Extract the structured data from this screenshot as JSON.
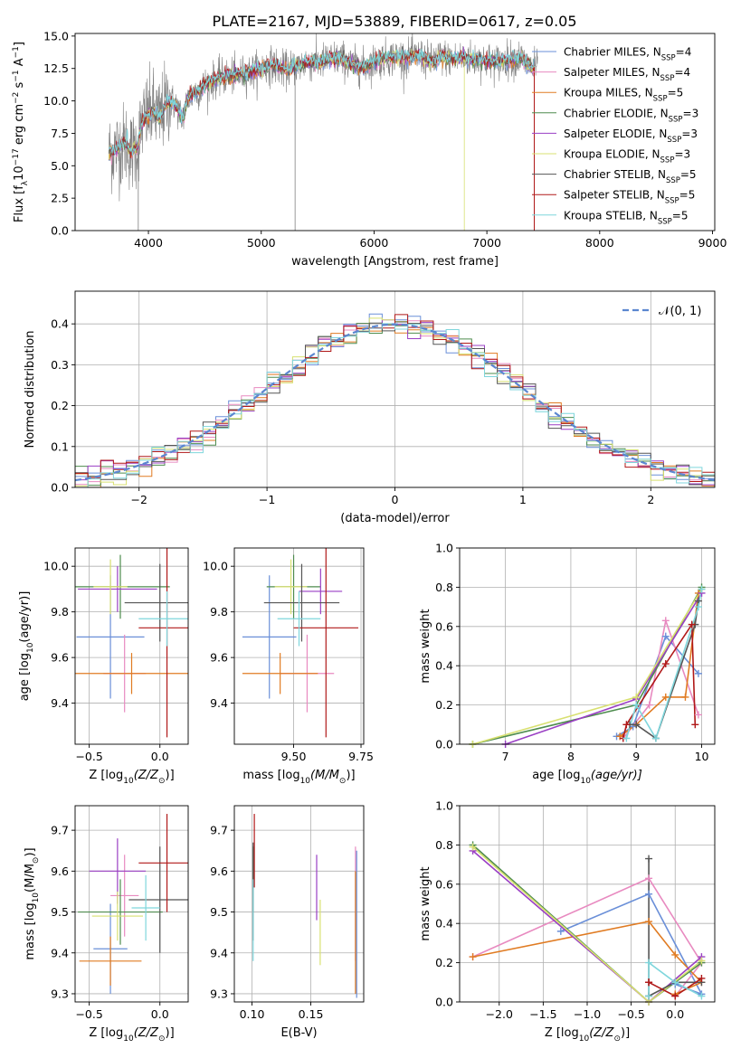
{
  "title": "PLATE=2167, MJD=53889, FIBERID=0617, z=0.05",
  "colors": {
    "chabrier_miles": "#6a8fd8",
    "salpeter_miles": "#e88ac0",
    "kroupa_miles": "#e07b22",
    "chabrier_elodie": "#4e8c4e",
    "salpeter_elodie": "#9a3fc4",
    "kroupa_elodie": "#d8e070",
    "chabrier_stelib": "#555555",
    "salpeter_stelib": "#b01818",
    "kroupa_stelib": "#7fd6dc",
    "data": "#808080",
    "gauss": "#5b86d0"
  },
  "chart_data": [
    {
      "id": "spectrum",
      "type": "line",
      "xlabel": "wavelength [Angstrom, rest frame]",
      "ylabel": "Flux [f",
      "ylabel_sub": "λ",
      "ylabel_tail": "10",
      "ylabel_sup1": "−17",
      "ylabel_tail2": " erg cm",
      "ylabel_sup2": "−2",
      "ylabel_tail3": " s",
      "ylabel_sup3": "−1",
      "ylabel_tail4": " A",
      "ylabel_sup4": "−1",
      "ylabel_end": "]",
      "xlim": [
        3350,
        9020
      ],
      "ylim": [
        0,
        15.2
      ],
      "xticks": [
        4000,
        5000,
        6000,
        7000,
        8000,
        9000
      ],
      "yticks": [
        0.0,
        2.5,
        5.0,
        7.5,
        10.0,
        12.5,
        15.0
      ],
      "ytick_labels": [
        "0.0",
        "2.5",
        "5.0",
        "7.5",
        "10.0",
        "12.5",
        "15.0"
      ],
      "continuum": {
        "x": [
          3650,
          3700,
          3750,
          3800,
          3850,
          3900,
          3950,
          4000,
          4050,
          4100,
          4150,
          4200,
          4250,
          4300,
          4350,
          4400,
          4450,
          4500,
          4600,
          4700,
          4800,
          4900,
          5000,
          5100,
          5200,
          5300,
          5400,
          5500,
          5600,
          5700,
          5800,
          5900,
          6000,
          6100,
          6200,
          6300,
          6400,
          6500,
          6600,
          6700,
          6800,
          6900,
          7000,
          7100,
          7200,
          7300,
          7400,
          7420
        ],
        "y": [
          6.0,
          6.2,
          6.5,
          6.8,
          6.0,
          6.5,
          8.5,
          9.0,
          9.2,
          8.6,
          9.8,
          10.0,
          9.6,
          8.6,
          10.2,
          10.6,
          10.8,
          11.2,
          11.7,
          11.9,
          12.0,
          12.2,
          12.5,
          12.8,
          12.4,
          12.6,
          13.0,
          12.9,
          13.2,
          13.3,
          12.8,
          12.6,
          13.0,
          13.3,
          13.4,
          13.3,
          13.5,
          13.0,
          13.4,
          13.2,
          13.3,
          13.2,
          13.1,
          13.0,
          13.2,
          13.3,
          12.5,
          12.6
        ]
      },
      "models_xmax": 7420,
      "data_xmax": 7450,
      "legend_position": "upper right",
      "legend": [
        {
          "label": "Chabrier MILES, N",
          "sub": "SSP",
          "tail": "=4",
          "color_key": "chabrier_miles"
        },
        {
          "label": "Salpeter MILES, N",
          "sub": "SSP",
          "tail": "=4",
          "color_key": "salpeter_miles"
        },
        {
          "label": "Kroupa MILES, N",
          "sub": "SSP",
          "tail": "=5",
          "color_key": "kroupa_miles"
        },
        {
          "label": "Chabrier ELODIE, N",
          "sub": "SSP",
          "tail": "=3",
          "color_key": "chabrier_elodie"
        },
        {
          "label": "Salpeter ELODIE, N",
          "sub": "SSP",
          "tail": "=3",
          "color_key": "salpeter_elodie"
        },
        {
          "label": "Kroupa ELODIE, N",
          "sub": "SSP",
          "tail": "=3",
          "color_key": "kroupa_elodie"
        },
        {
          "label": "Chabrier STELIB, N",
          "sub": "SSP",
          "tail": "=5",
          "color_key": "chabrier_stelib"
        },
        {
          "label": "Salpeter STELIB, N",
          "sub": "SSP",
          "tail": "=5",
          "color_key": "salpeter_stelib"
        },
        {
          "label": "Kroupa STELIB, N",
          "sub": "SSP",
          "tail": "=5",
          "color_key": "kroupa_stelib"
        }
      ]
    },
    {
      "id": "residuals",
      "type": "line",
      "xlabel": "(data-model)/error",
      "ylabel": "Normed distribution",
      "xlim": [
        -2.5,
        2.5
      ],
      "ylim": [
        0,
        0.48
      ],
      "xticks": [
        -2,
        -1,
        0,
        1,
        2
      ],
      "xtick_labels": [
        "−2",
        "−1",
        "0",
        "1",
        "2"
      ],
      "yticks": [
        0.0,
        0.1,
        0.2,
        0.3,
        0.4
      ],
      "ytick_labels": [
        "0.0",
        "0.1",
        "0.2",
        "0.3",
        "0.4"
      ],
      "grid": true,
      "bin_width": 0.1,
      "gauss_label": "𝒩(0, 1)",
      "legend_position": "upper right"
    },
    {
      "id": "age_vs_Z",
      "type": "errorbar",
      "xlabel": "Z [log",
      "xlabel_sub": "10",
      "xlabel_tail": "(Z/Z",
      "xlabel_sub2": "⊙",
      "xlabel_end": ")]",
      "ylabel": "age  [log",
      "ylabel_sub": "10",
      "ylabel_tail": "(age/yr)]",
      "xlim": [
        -0.6,
        0.2
      ],
      "ylim": [
        9.22,
        10.08
      ],
      "xticks": [
        -0.5,
        0.0
      ],
      "xtick_labels": [
        "−0.5",
        "0.0"
      ],
      "yticks": [
        9.4,
        9.6,
        9.8,
        10.0
      ],
      "ytick_labels": [
        "9.4",
        "9.6",
        "9.8",
        "10.0"
      ],
      "grid": true,
      "points": [
        {
          "x": -0.35,
          "y": 9.69,
          "xerr": 0.24,
          "yerr": 0.27,
          "color_key": "chabrier_miles"
        },
        {
          "x": -0.25,
          "y": 9.53,
          "xerr": 0.15,
          "yerr": 0.17,
          "color_key": "salpeter_miles"
        },
        {
          "x": -0.2,
          "y": 9.53,
          "xerr": 0.42,
          "yerr": 0.09,
          "color_key": "kroupa_miles"
        },
        {
          "x": -0.28,
          "y": 9.91,
          "xerr": 0.35,
          "yerr": 0.14,
          "color_key": "chabrier_elodie"
        },
        {
          "x": -0.3,
          "y": 9.9,
          "xerr": 0.28,
          "yerr": 0.1,
          "color_key": "salpeter_elodie"
        },
        {
          "x": -0.35,
          "y": 9.91,
          "xerr": 0.12,
          "yerr": 0.12,
          "color_key": "kroupa_elodie"
        },
        {
          "x": 0.0,
          "y": 9.84,
          "xerr": 0.25,
          "yerr": 0.17,
          "color_key": "chabrier_stelib"
        },
        {
          "x": 0.05,
          "y": 9.73,
          "xerr": 0.2,
          "yerr": 0.48,
          "color_key": "salpeter_stelib"
        },
        {
          "x": 0.05,
          "y": 9.77,
          "xerr": 0.2,
          "yerr": 0.12,
          "color_key": "kroupa_stelib"
        }
      ]
    },
    {
      "id": "age_vs_mass",
      "type": "errorbar",
      "xlabel": "mass [log",
      "xlabel_sub": "10",
      "xlabel_tail": "(M/M",
      "xlabel_sub2": "⊙",
      "xlabel_end": ")]",
      "xlim": [
        9.28,
        9.76
      ],
      "ylim": [
        9.22,
        10.08
      ],
      "xticks": [
        9.5,
        9.75
      ],
      "xtick_labels": [
        "9.50",
        "9.75"
      ],
      "yticks": [
        9.4,
        9.6,
        9.8,
        10.0
      ],
      "ytick_labels": [
        "9.4",
        "9.6",
        "9.8",
        "10.0"
      ],
      "grid": true,
      "points": [
        {
          "x": 9.41,
          "y": 9.69,
          "xerr": 0.1,
          "yerr": 0.27,
          "color_key": "chabrier_miles"
        },
        {
          "x": 9.55,
          "y": 9.53,
          "xerr": 0.1,
          "yerr": 0.17,
          "color_key": "salpeter_miles"
        },
        {
          "x": 9.45,
          "y": 9.53,
          "xerr": 0.14,
          "yerr": 0.09,
          "color_key": "kroupa_miles"
        },
        {
          "x": 9.5,
          "y": 9.91,
          "xerr": 0.1,
          "yerr": 0.14,
          "color_key": "chabrier_elodie"
        },
        {
          "x": 9.6,
          "y": 9.89,
          "xerr": 0.08,
          "yerr": 0.1,
          "color_key": "salpeter_elodie"
        },
        {
          "x": 9.49,
          "y": 9.91,
          "xerr": 0.06,
          "yerr": 0.12,
          "color_key": "kroupa_elodie"
        },
        {
          "x": 9.53,
          "y": 9.84,
          "xerr": 0.14,
          "yerr": 0.17,
          "color_key": "chabrier_stelib"
        },
        {
          "x": 9.62,
          "y": 9.73,
          "xerr": 0.12,
          "yerr": 0.48,
          "color_key": "salpeter_stelib"
        },
        {
          "x": 9.52,
          "y": 9.77,
          "xerr": 0.08,
          "yerr": 0.12,
          "color_key": "kroupa_stelib"
        }
      ]
    },
    {
      "id": "mass_weight_vs_age",
      "type": "line",
      "xlabel": "age  [log",
      "xlabel_sub": "10",
      "xlabel_tail": "(age/yr)]",
      "ylabel": "mass weight",
      "xlim": [
        6.3,
        10.2
      ],
      "ylim": [
        0,
        1.0
      ],
      "xticks": [
        7,
        8,
        9,
        10
      ],
      "xtick_labels": [
        "7",
        "8",
        "9",
        "10"
      ],
      "yticks": [
        0.0,
        0.2,
        0.4,
        0.6,
        0.8,
        1.0
      ],
      "ytick_labels": [
        "0.0",
        "0.2",
        "0.4",
        "0.6",
        "0.8",
        "1.0"
      ],
      "grid": true,
      "series": [
        {
          "color_key": "chabrier_miles",
          "x": [
            8.7,
            8.95,
            9.45,
            9.95
          ],
          "y": [
            0.04,
            0.09,
            0.55,
            0.36
          ]
        },
        {
          "color_key": "salpeter_miles",
          "x": [
            8.8,
            9.2,
            9.45,
            9.95
          ],
          "y": [
            0.03,
            0.2,
            0.63,
            0.15
          ]
        },
        {
          "color_key": "kroupa_miles",
          "x": [
            8.75,
            9.0,
            9.45,
            9.75,
            9.95
          ],
          "y": [
            0.04,
            0.1,
            0.24,
            0.24,
            0.77
          ]
        },
        {
          "color_key": "chabrier_elodie",
          "x": [
            6.5,
            9.0,
            10.0
          ],
          "y": [
            0.0,
            0.2,
            0.8
          ]
        },
        {
          "color_key": "salpeter_elodie",
          "x": [
            7.0,
            9.0,
            10.0
          ],
          "y": [
            0.0,
            0.23,
            0.77
          ]
        },
        {
          "color_key": "kroupa_elodie",
          "x": [
            6.5,
            9.0,
            10.0
          ],
          "y": [
            0.0,
            0.24,
            0.79
          ]
        },
        {
          "color_key": "chabrier_stelib",
          "x": [
            8.9,
            9.0,
            9.3,
            9.9,
            9.95
          ],
          "y": [
            0.1,
            0.1,
            0.03,
            0.61,
            0.73
          ]
        },
        {
          "color_key": "salpeter_stelib",
          "x": [
            8.8,
            8.85,
            9.45,
            9.85,
            9.9
          ],
          "y": [
            0.03,
            0.1,
            0.41,
            0.61,
            0.1
          ]
        },
        {
          "color_key": "kroupa_stelib",
          "x": [
            8.85,
            9.0,
            9.3,
            9.95,
            10.0
          ],
          "y": [
            0.03,
            0.2,
            0.03,
            0.7,
            0.79
          ]
        }
      ]
    },
    {
      "id": "mass_vs_Z",
      "type": "errorbar",
      "xlabel": "Z [log",
      "xlabel_sub": "10",
      "xlabel_tail": "(Z/Z",
      "xlabel_sub2": "⊙",
      "xlabel_end": ")]",
      "ylabel": "mass [log",
      "ylabel_sub": "10",
      "ylabel_tail": "(M/M",
      "ylabel_sub2": "⊙",
      "ylabel_end": ")]",
      "xlim": [
        -0.6,
        0.2
      ],
      "ylim": [
        9.28,
        9.76
      ],
      "xticks": [
        -0.5,
        0.0
      ],
      "xtick_labels": [
        "−0.5",
        "0.0"
      ],
      "yticks": [
        9.3,
        9.4,
        9.5,
        9.6,
        9.7
      ],
      "ytick_labels": [
        "9.3",
        "9.4",
        "9.5",
        "9.6",
        "9.7"
      ],
      "grid": true,
      "points": [
        {
          "x": -0.35,
          "y": 9.41,
          "xerr": 0.12,
          "yerr": 0.11,
          "color_key": "chabrier_miles"
        },
        {
          "x": -0.25,
          "y": 9.54,
          "xerr": 0.1,
          "yerr": 0.1,
          "color_key": "salpeter_miles"
        },
        {
          "x": -0.35,
          "y": 9.38,
          "xerr": 0.22,
          "yerr": 0.06,
          "color_key": "kroupa_miles"
        },
        {
          "x": -0.28,
          "y": 9.5,
          "xerr": 0.3,
          "yerr": 0.08,
          "color_key": "chabrier_elodie"
        },
        {
          "x": -0.3,
          "y": 9.6,
          "xerr": 0.2,
          "yerr": 0.08,
          "color_key": "salpeter_elodie"
        },
        {
          "x": -0.3,
          "y": 9.49,
          "xerr": 0.18,
          "yerr": 0.06,
          "color_key": "kroupa_elodie"
        },
        {
          "x": -0.0,
          "y": 9.53,
          "xerr": 0.22,
          "yerr": 0.13,
          "color_key": "chabrier_stelib"
        },
        {
          "x": 0.05,
          "y": 9.62,
          "xerr": 0.2,
          "yerr": 0.12,
          "color_key": "salpeter_stelib"
        },
        {
          "x": -0.1,
          "y": 9.51,
          "xerr": 0.1,
          "yerr": 0.08,
          "color_key": "kroupa_stelib"
        }
      ]
    },
    {
      "id": "mass_vs_ebv",
      "type": "errorbar",
      "xlabel": "E(B-V)",
      "xlim": [
        0.085,
        0.195
      ],
      "ylim": [
        9.28,
        9.76
      ],
      "xticks": [
        0.1,
        0.15
      ],
      "xtick_labels": [
        "0.10",
        "0.15"
      ],
      "yticks": [
        9.3,
        9.4,
        9.5,
        9.6,
        9.7
      ],
      "ytick_labels": [
        "9.3",
        "9.4",
        "9.5",
        "9.6",
        "9.7"
      ],
      "grid": true,
      "points": [
        {
          "x": 0.189,
          "y": 9.47,
          "xerr": 0,
          "yerr": 0.18,
          "color_key": "chabrier_miles"
        },
        {
          "x": 0.188,
          "y": 9.52,
          "xerr": 0,
          "yerr": 0.14,
          "color_key": "salpeter_miles"
        },
        {
          "x": 0.188,
          "y": 9.45,
          "xerr": 0,
          "yerr": 0.15,
          "color_key": "kroupa_miles"
        },
        {
          "x": 0.101,
          "y": 9.58,
          "xerr": 0,
          "yerr": 0.08,
          "color_key": "chabrier_elodie"
        },
        {
          "x": 0.155,
          "y": 9.56,
          "xerr": 0,
          "yerr": 0.08,
          "color_key": "salpeter_elodie"
        },
        {
          "x": 0.158,
          "y": 9.45,
          "xerr": 0,
          "yerr": 0.08,
          "color_key": "kroupa_elodie"
        },
        {
          "x": 0.101,
          "y": 9.55,
          "xerr": 0,
          "yerr": 0.12,
          "color_key": "chabrier_stelib"
        },
        {
          "x": 0.102,
          "y": 9.65,
          "xerr": 0,
          "yerr": 0.09,
          "color_key": "salpeter_stelib"
        },
        {
          "x": 0.101,
          "y": 9.48,
          "xerr": 0,
          "yerr": 0.1,
          "color_key": "kroupa_stelib"
        }
      ]
    },
    {
      "id": "mass_weight_vs_Z",
      "type": "line",
      "xlabel": "Z [log",
      "xlabel_sub": "10",
      "xlabel_tail": "(Z/Z",
      "xlabel_sub2": "⊙",
      "xlabel_end": ")]",
      "ylabel": "mass weight",
      "xlim": [
        -2.45,
        0.45
      ],
      "ylim": [
        0,
        1.0
      ],
      "xticks": [
        -2.0,
        -1.5,
        -1.0,
        -0.5,
        0.0
      ],
      "xtick_labels": [
        "−2.0",
        "−1.5",
        "−1.0",
        "−0.5",
        "0.0"
      ],
      "yticks": [
        0.0,
        0.2,
        0.4,
        0.6,
        0.8,
        1.0
      ],
      "ytick_labels": [
        "0.0",
        "0.2",
        "0.4",
        "0.6",
        "0.8",
        "1.0"
      ],
      "grid": true,
      "series": [
        {
          "color_key": "chabrier_miles",
          "x": [
            -1.3,
            -0.3,
            0.3,
            0.0
          ],
          "y": [
            0.36,
            0.55,
            0.04,
            0.09
          ]
        },
        {
          "color_key": "salpeter_miles",
          "x": [
            -2.3,
            -0.3,
            0.3,
            0.0
          ],
          "y": [
            0.23,
            0.63,
            0.2,
            0.03
          ]
        },
        {
          "color_key": "kroupa_miles",
          "x": [
            -2.3,
            -0.3,
            0.0,
            0.3,
            0.0
          ],
          "y": [
            0.23,
            0.41,
            0.24,
            0.1,
            0.04
          ]
        },
        {
          "color_key": "chabrier_elodie",
          "x": [
            -2.3,
            -0.3,
            0.3
          ],
          "y": [
            0.8,
            0.0,
            0.2
          ]
        },
        {
          "color_key": "salpeter_elodie",
          "x": [
            -2.3,
            -0.3,
            0.3
          ],
          "y": [
            0.77,
            0.0,
            0.23
          ]
        },
        {
          "color_key": "kroupa_elodie",
          "x": [
            -2.3,
            -0.3,
            0.3
          ],
          "y": [
            0.79,
            0.0,
            0.21
          ]
        },
        {
          "color_key": "chabrier_stelib",
          "x": [
            -0.3,
            -0.3,
            0.0,
            0.3
          ],
          "y": [
            0.73,
            0.03,
            0.1,
            0.1
          ]
        },
        {
          "color_key": "salpeter_stelib",
          "x": [
            -0.3,
            -0.3,
            0.0,
            0.3
          ],
          "y": [
            0.1,
            0.1,
            0.03,
            0.12
          ]
        },
        {
          "color_key": "kroupa_stelib",
          "x": [
            -0.3,
            -0.3,
            0.0,
            0.3
          ],
          "y": [
            0.03,
            0.2,
            0.1,
            0.03
          ]
        }
      ]
    }
  ]
}
